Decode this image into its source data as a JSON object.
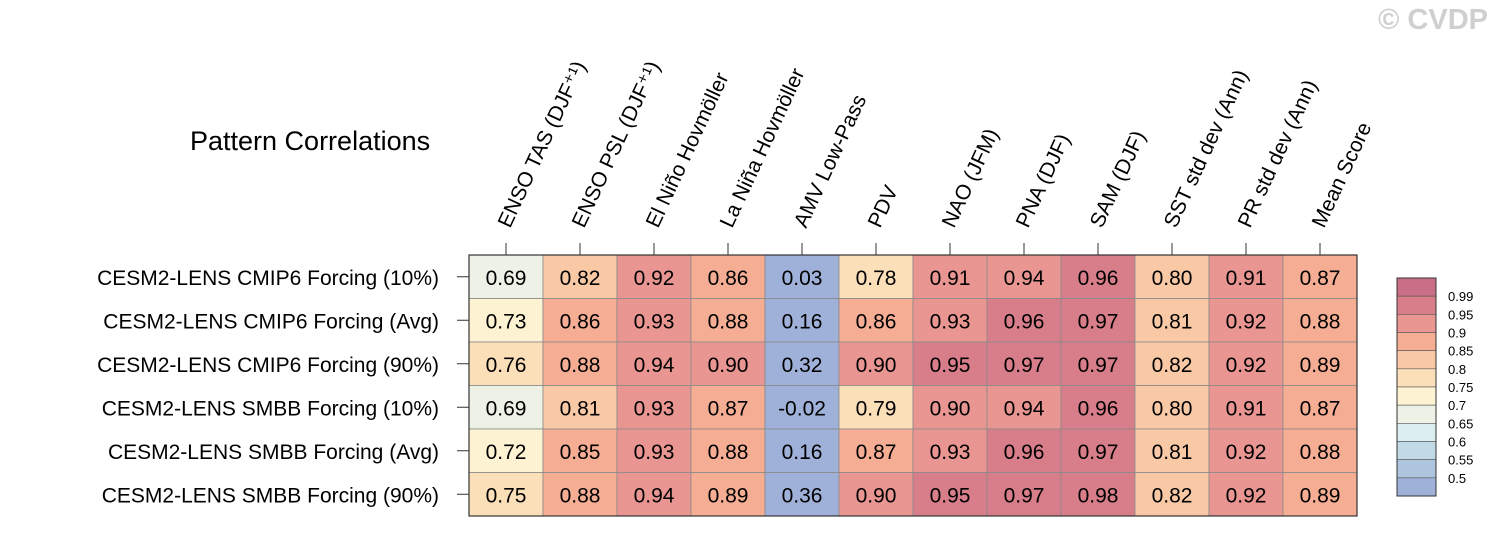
{
  "watermark": "© CVDP",
  "chart_data": {
    "type": "heatmap",
    "title": "Pattern Correlations",
    "columns": [
      "ENSO TAS (DJF⁺¹)",
      "ENSO PSL (DJF⁺¹)",
      "El Niño Hovmöller",
      "La Niña Hovmöller",
      "AMV Low-Pass",
      "PDV",
      "NAO (JFM)",
      "PNA (DJF)",
      "SAM (DJF)",
      "SST std dev (Ann)",
      "PR std dev (Ann)",
      "Mean Score"
    ],
    "rows": [
      "CESM2-LENS CMIP6 Forcing (10%)",
      "CESM2-LENS CMIP6 Forcing (Avg)",
      "CESM2-LENS CMIP6 Forcing (90%)",
      "CESM2-LENS SMBB Forcing (10%)",
      "CESM2-LENS SMBB Forcing (Avg)",
      "CESM2-LENS SMBB Forcing (90%)"
    ],
    "values": [
      [
        "0.69",
        "0.82",
        "0.92",
        "0.86",
        "0.03",
        "0.78",
        "0.91",
        "0.94",
        "0.96",
        "0.80",
        "0.91",
        "0.87"
      ],
      [
        "0.73",
        "0.86",
        "0.93",
        "0.88",
        "0.16",
        "0.86",
        "0.93",
        "0.96",
        "0.97",
        "0.81",
        "0.92",
        "0.88"
      ],
      [
        "0.76",
        "0.88",
        "0.94",
        "0.90",
        "0.32",
        "0.90",
        "0.95",
        "0.97",
        "0.97",
        "0.82",
        "0.92",
        "0.89"
      ],
      [
        "0.69",
        "0.81",
        "0.93",
        "0.87",
        "-0.02",
        "0.79",
        "0.90",
        "0.94",
        "0.96",
        "0.80",
        "0.91",
        "0.87"
      ],
      [
        "0.72",
        "0.85",
        "0.93",
        "0.88",
        "0.16",
        "0.87",
        "0.93",
        "0.96",
        "0.97",
        "0.81",
        "0.92",
        "0.88"
      ],
      [
        "0.75",
        "0.88",
        "0.94",
        "0.89",
        "0.36",
        "0.90",
        "0.95",
        "0.97",
        "0.98",
        "0.82",
        "0.92",
        "0.89"
      ]
    ],
    "colorbar": {
      "labels": [
        "0.99",
        "0.95",
        "0.9",
        "0.85",
        "0.8",
        "0.75",
        "0.7",
        "0.65",
        "0.6",
        "0.55",
        "0.5"
      ],
      "thresholds": [
        0.5,
        0.55,
        0.6,
        0.65,
        0.7,
        0.75,
        0.8,
        0.85,
        0.9,
        0.95,
        0.99
      ],
      "colors": [
        "#9fb1d8",
        "#aec6dd",
        "#c2dae6",
        "#dcedf2",
        "#eef2e6",
        "#fdf3d3",
        "#fbdfb8",
        "#f9c9a5",
        "#f5ad94",
        "#e99692",
        "#d87e8a",
        "#c96e86"
      ]
    }
  }
}
